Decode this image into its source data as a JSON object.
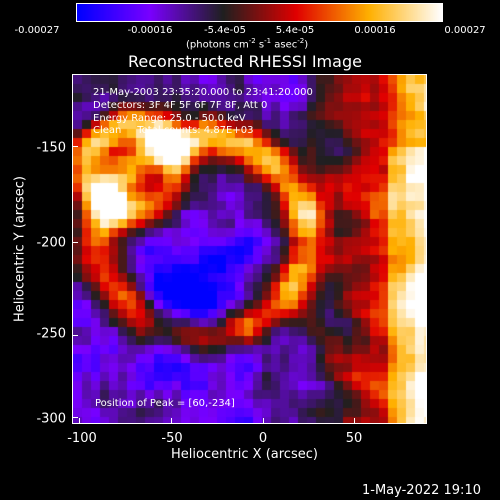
{
  "colorbar": {
    "tick_labels": [
      "-0.00027",
      "-0.00016",
      "-5.4e-05",
      "5.4e-05",
      "0.00016",
      "0.00027"
    ],
    "unit_prefix": "(photons cm",
    "unit_sup1": "-2",
    "unit_mid": " s",
    "unit_sup2": "-1",
    "unit_mid2": " asec",
    "unit_sup3": "-2",
    "unit_suffix": ")",
    "colormap": [
      "#0000ff",
      "#7a00ff",
      "#202020",
      "#e00000",
      "#ffb000",
      "#ffffff"
    ]
  },
  "chart_data": {
    "type": "heatmap",
    "title": "Reconstructed RHESSI Image",
    "xlabel": "Heliocentric X (arcsec)",
    "ylabel": "Heliocentric Y (arcsec)",
    "xlim": [
      -103,
      90
    ],
    "ylim": [
      -302,
      -127
    ],
    "xticks": [
      -100,
      -50,
      0,
      50
    ],
    "yticks": [
      -150,
      -200,
      -250,
      -300
    ],
    "value_range": [
      -0.00027,
      0.00027
    ],
    "peak_position": [
      60,
      -234
    ],
    "annotations": {
      "line1": "21-May-2003 23:35:20.000 to 23:41:20.000",
      "line2": "Detectors: 3F 4F 5F 6F 7F 8F, Att 0",
      "line3": "Energy Range: 25.0 - 50.0 keV",
      "line4": "Clean     Total counts: 4.87E+03",
      "peak": "Position of Peak = [60,-234]"
    }
  },
  "footer": {
    "timestamp": "1-May-2022 19:10"
  }
}
